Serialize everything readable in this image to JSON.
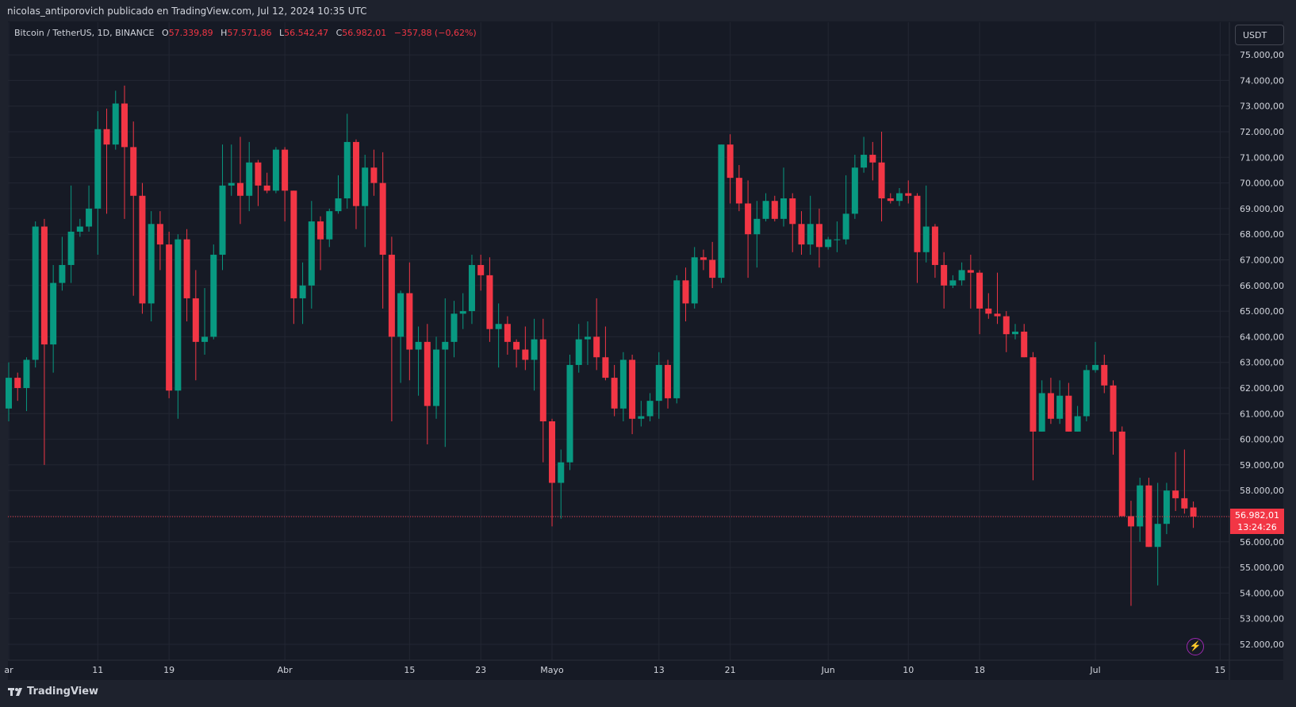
{
  "header": {
    "published_line": "nicolas_antiporovich publicado en TradingView.com, Jul 12, 2024 10:35 UTC"
  },
  "legend": {
    "symbol": "Bitcoin / TetherUS, 1D, BINANCE",
    "o_label": "O",
    "o_value": "57.339,89",
    "h_label": "H",
    "h_value": "57.571,86",
    "l_label": "L",
    "l_value": "56.542,47",
    "c_label": "C",
    "c_value": "56.982,01",
    "change": "−357,88 (−0,62%)"
  },
  "currency_button": "USDT",
  "last_price": {
    "price": "56.982,01",
    "countdown": "13:24:26",
    "value": 56982.01
  },
  "footer": {
    "brand": "TradingView"
  },
  "icons": {
    "brand_logo": "tradingview-logo-icon",
    "bolt": "lightning-bolt-icon"
  },
  "colors": {
    "up": "#089981",
    "down": "#f23645",
    "background": "#161a25",
    "grid": "#232733"
  },
  "chart_data": {
    "type": "candlestick",
    "ylim": [
      51500,
      75500
    ],
    "y_ticks": [
      52000,
      53000,
      54000,
      55000,
      56000,
      57000,
      58000,
      59000,
      60000,
      61000,
      62000,
      63000,
      64000,
      65000,
      66000,
      67000,
      68000,
      69000,
      70000,
      71000,
      72000,
      73000,
      74000,
      75000
    ],
    "y_tick_labels": [
      "52.000,00",
      "53.000,00",
      "54.000,00",
      "55.000,00",
      "56.000,00",
      "57.000,00",
      "58.000,00",
      "59.000,00",
      "60.000,00",
      "61.000,00",
      "62.000,00",
      "63.000,00",
      "64.000,00",
      "65.000,00",
      "66.000,00",
      "67.000,00",
      "68.000,00",
      "69.000,00",
      "70.000,00",
      "71.000,00",
      "72.000,00",
      "73.000,00",
      "74.000,00",
      "75.000,00"
    ],
    "x_ticks": [
      {
        "label": "ar",
        "date": "2024-03-01"
      },
      {
        "label": "11",
        "date": "2024-03-11"
      },
      {
        "label": "19",
        "date": "2024-03-19"
      },
      {
        "label": "Abr",
        "date": "2024-04-01"
      },
      {
        "label": "15",
        "date": "2024-04-15"
      },
      {
        "label": "23",
        "date": "2024-04-23"
      },
      {
        "label": "Mayo",
        "date": "2024-05-01"
      },
      {
        "label": "13",
        "date": "2024-05-13"
      },
      {
        "label": "21",
        "date": "2024-05-21"
      },
      {
        "label": "Jun",
        "date": "2024-06-01"
      },
      {
        "label": "10",
        "date": "2024-06-10"
      },
      {
        "label": "18",
        "date": "2024-06-18"
      },
      {
        "label": "Jul",
        "date": "2024-07-01"
      },
      {
        "label": "15",
        "date": "2024-07-15"
      }
    ],
    "candles": [
      {
        "date": "2024-03-01",
        "o": 61200,
        "h": 63000,
        "l": 60700,
        "c": 62400
      },
      {
        "date": "2024-03-02",
        "o": 62400,
        "h": 62600,
        "l": 61500,
        "c": 62000
      },
      {
        "date": "2024-03-03",
        "o": 62000,
        "h": 63200,
        "l": 61100,
        "c": 63100
      },
      {
        "date": "2024-03-04",
        "o": 63100,
        "h": 68500,
        "l": 62800,
        "c": 68300
      },
      {
        "date": "2024-03-05",
        "o": 68300,
        "h": 68600,
        "l": 59000,
        "c": 63700
      },
      {
        "date": "2024-03-06",
        "o": 63700,
        "h": 66800,
        "l": 62600,
        "c": 66100
      },
      {
        "date": "2024-03-07",
        "o": 66100,
        "h": 67900,
        "l": 65800,
        "c": 66800
      },
      {
        "date": "2024-03-08",
        "o": 66800,
        "h": 69900,
        "l": 66100,
        "c": 68100
      },
      {
        "date": "2024-03-09",
        "o": 68100,
        "h": 68600,
        "l": 67900,
        "c": 68300
      },
      {
        "date": "2024-03-10",
        "o": 68300,
        "h": 69900,
        "l": 68100,
        "c": 69000
      },
      {
        "date": "2024-03-11",
        "o": 69000,
        "h": 72800,
        "l": 67200,
        "c": 72100
      },
      {
        "date": "2024-03-12",
        "o": 72100,
        "h": 72900,
        "l": 68800,
        "c": 71500
      },
      {
        "date": "2024-03-13",
        "o": 71500,
        "h": 73600,
        "l": 71300,
        "c": 73100
      },
      {
        "date": "2024-03-14",
        "o": 73100,
        "h": 73800,
        "l": 68600,
        "c": 71400
      },
      {
        "date": "2024-03-15",
        "o": 71400,
        "h": 72400,
        "l": 65600,
        "c": 69500
      },
      {
        "date": "2024-03-16",
        "o": 69500,
        "h": 70000,
        "l": 64900,
        "c": 65300
      },
      {
        "date": "2024-03-17",
        "o": 65300,
        "h": 68900,
        "l": 64600,
        "c": 68400
      },
      {
        "date": "2024-03-18",
        "o": 68400,
        "h": 68900,
        "l": 66600,
        "c": 67600
      },
      {
        "date": "2024-03-19",
        "o": 67600,
        "h": 68100,
        "l": 61600,
        "c": 61900
      },
      {
        "date": "2024-03-20",
        "o": 61900,
        "h": 68000,
        "l": 60800,
        "c": 67800
      },
      {
        "date": "2024-03-21",
        "o": 67800,
        "h": 68200,
        "l": 64600,
        "c": 65500
      },
      {
        "date": "2024-03-22",
        "o": 65500,
        "h": 66600,
        "l": 62300,
        "c": 63800
      },
      {
        "date": "2024-03-23",
        "o": 63800,
        "h": 65900,
        "l": 63300,
        "c": 64000
      },
      {
        "date": "2024-03-24",
        "o": 64000,
        "h": 67600,
        "l": 63900,
        "c": 67200
      },
      {
        "date": "2024-03-25",
        "o": 67200,
        "h": 71500,
        "l": 66600,
        "c": 69900
      },
      {
        "date": "2024-03-26",
        "o": 69900,
        "h": 71500,
        "l": 69500,
        "c": 70000
      },
      {
        "date": "2024-03-27",
        "o": 70000,
        "h": 71800,
        "l": 68400,
        "c": 69500
      },
      {
        "date": "2024-03-28",
        "o": 69500,
        "h": 71600,
        "l": 68900,
        "c": 70800
      },
      {
        "date": "2024-03-29",
        "o": 70800,
        "h": 70900,
        "l": 69100,
        "c": 69900
      },
      {
        "date": "2024-03-30",
        "o": 69900,
        "h": 70400,
        "l": 69600,
        "c": 69700
      },
      {
        "date": "2024-03-31",
        "o": 69700,
        "h": 71400,
        "l": 69600,
        "c": 71300
      },
      {
        "date": "2024-04-01",
        "o": 71300,
        "h": 71400,
        "l": 68500,
        "c": 69700
      },
      {
        "date": "2024-04-02",
        "o": 69700,
        "h": 69700,
        "l": 64500,
        "c": 65500
      },
      {
        "date": "2024-04-03",
        "o": 65500,
        "h": 66900,
        "l": 64500,
        "c": 66000
      },
      {
        "date": "2024-04-04",
        "o": 66000,
        "h": 69300,
        "l": 65100,
        "c": 68500
      },
      {
        "date": "2024-04-05",
        "o": 68500,
        "h": 68700,
        "l": 66600,
        "c": 67800
      },
      {
        "date": "2024-04-06",
        "o": 67800,
        "h": 69000,
        "l": 67500,
        "c": 68900
      },
      {
        "date": "2024-04-07",
        "o": 68900,
        "h": 70300,
        "l": 68800,
        "c": 69400
      },
      {
        "date": "2024-04-08",
        "o": 69400,
        "h": 72700,
        "l": 69000,
        "c": 71600
      },
      {
        "date": "2024-04-09",
        "o": 71600,
        "h": 71700,
        "l": 68200,
        "c": 69100
      },
      {
        "date": "2024-04-10",
        "o": 69100,
        "h": 71100,
        "l": 67500,
        "c": 70600
      },
      {
        "date": "2024-04-11",
        "o": 70600,
        "h": 71300,
        "l": 69500,
        "c": 70000
      },
      {
        "date": "2024-04-12",
        "o": 70000,
        "h": 71200,
        "l": 65100,
        "c": 67200
      },
      {
        "date": "2024-04-13",
        "o": 67200,
        "h": 67900,
        "l": 60700,
        "c": 64000
      },
      {
        "date": "2024-04-14",
        "o": 64000,
        "h": 65800,
        "l": 62200,
        "c": 65700
      },
      {
        "date": "2024-04-15",
        "o": 65700,
        "h": 66900,
        "l": 62300,
        "c": 63500
      },
      {
        "date": "2024-04-16",
        "o": 63500,
        "h": 64400,
        "l": 61700,
        "c": 63800
      },
      {
        "date": "2024-04-17",
        "o": 63800,
        "h": 64500,
        "l": 59800,
        "c": 61300
      },
      {
        "date": "2024-04-18",
        "o": 61300,
        "h": 64000,
        "l": 60800,
        "c": 63500
      },
      {
        "date": "2024-04-19",
        "o": 63500,
        "h": 65500,
        "l": 59700,
        "c": 63800
      },
      {
        "date": "2024-04-20",
        "o": 63800,
        "h": 65400,
        "l": 63200,
        "c": 64900
      },
      {
        "date": "2024-04-21",
        "o": 64900,
        "h": 65700,
        "l": 64300,
        "c": 65000
      },
      {
        "date": "2024-04-22",
        "o": 65000,
        "h": 67200,
        "l": 64500,
        "c": 66800
      },
      {
        "date": "2024-04-23",
        "o": 66800,
        "h": 67200,
        "l": 65800,
        "c": 66400
      },
      {
        "date": "2024-04-24",
        "o": 66400,
        "h": 67100,
        "l": 63800,
        "c": 64300
      },
      {
        "date": "2024-04-25",
        "o": 64300,
        "h": 65300,
        "l": 62800,
        "c": 64500
      },
      {
        "date": "2024-04-26",
        "o": 64500,
        "h": 64800,
        "l": 63300,
        "c": 63800
      },
      {
        "date": "2024-04-27",
        "o": 63800,
        "h": 63900,
        "l": 62800,
        "c": 63500
      },
      {
        "date": "2024-04-28",
        "o": 63500,
        "h": 64400,
        "l": 62700,
        "c": 63100
      },
      {
        "date": "2024-04-29",
        "o": 63100,
        "h": 64700,
        "l": 61900,
        "c": 63900
      },
      {
        "date": "2024-04-30",
        "o": 63900,
        "h": 64700,
        "l": 59100,
        "c": 60700
      },
      {
        "date": "2024-05-01",
        "o": 60700,
        "h": 60800,
        "l": 56600,
        "c": 58300
      },
      {
        "date": "2024-05-02",
        "o": 58300,
        "h": 59600,
        "l": 56900,
        "c": 59100
      },
      {
        "date": "2024-05-03",
        "o": 59100,
        "h": 63300,
        "l": 58800,
        "c": 62900
      },
      {
        "date": "2024-05-04",
        "o": 62900,
        "h": 64500,
        "l": 62600,
        "c": 63900
      },
      {
        "date": "2024-05-05",
        "o": 63900,
        "h": 64600,
        "l": 62900,
        "c": 64000
      },
      {
        "date": "2024-05-06",
        "o": 64000,
        "h": 65500,
        "l": 62700,
        "c": 63200
      },
      {
        "date": "2024-05-07",
        "o": 63200,
        "h": 64400,
        "l": 62300,
        "c": 62400
      },
      {
        "date": "2024-05-08",
        "o": 62400,
        "h": 62900,
        "l": 60900,
        "c": 61200
      },
      {
        "date": "2024-05-09",
        "o": 61200,
        "h": 63400,
        "l": 60700,
        "c": 63100
      },
      {
        "date": "2024-05-10",
        "o": 63100,
        "h": 63300,
        "l": 60200,
        "c": 60800
      },
      {
        "date": "2024-05-11",
        "o": 60800,
        "h": 61500,
        "l": 60500,
        "c": 60900
      },
      {
        "date": "2024-05-12",
        "o": 60900,
        "h": 61800,
        "l": 60700,
        "c": 61500
      },
      {
        "date": "2024-05-13",
        "o": 61500,
        "h": 63400,
        "l": 60800,
        "c": 62900
      },
      {
        "date": "2024-05-14",
        "o": 62900,
        "h": 63100,
        "l": 61200,
        "c": 61600
      },
      {
        "date": "2024-05-15",
        "o": 61600,
        "h": 66400,
        "l": 61400,
        "c": 66200
      },
      {
        "date": "2024-05-16",
        "o": 66200,
        "h": 66700,
        "l": 64600,
        "c": 65300
      },
      {
        "date": "2024-05-17",
        "o": 65300,
        "h": 67500,
        "l": 65100,
        "c": 67100
      },
      {
        "date": "2024-05-18",
        "o": 67100,
        "h": 67400,
        "l": 66600,
        "c": 67000
      },
      {
        "date": "2024-05-19",
        "o": 67000,
        "h": 67700,
        "l": 65900,
        "c": 66300
      },
      {
        "date": "2024-05-20",
        "o": 66300,
        "h": 71500,
        "l": 66100,
        "c": 71500
      },
      {
        "date": "2024-05-21",
        "o": 71500,
        "h": 71900,
        "l": 69200,
        "c": 70200
      },
      {
        "date": "2024-05-22",
        "o": 70200,
        "h": 70700,
        "l": 68900,
        "c": 69200
      },
      {
        "date": "2024-05-23",
        "o": 69200,
        "h": 70100,
        "l": 66300,
        "c": 68000
      },
      {
        "date": "2024-05-24",
        "o": 68000,
        "h": 69300,
        "l": 66700,
        "c": 68600
      },
      {
        "date": "2024-05-25",
        "o": 68600,
        "h": 69600,
        "l": 68500,
        "c": 69300
      },
      {
        "date": "2024-05-26",
        "o": 69300,
        "h": 69500,
        "l": 68500,
        "c": 68600
      },
      {
        "date": "2024-05-27",
        "o": 68600,
        "h": 70600,
        "l": 68300,
        "c": 69400
      },
      {
        "date": "2024-05-28",
        "o": 69400,
        "h": 69600,
        "l": 67300,
        "c": 68400
      },
      {
        "date": "2024-05-29",
        "o": 68400,
        "h": 68900,
        "l": 67200,
        "c": 67600
      },
      {
        "date": "2024-05-30",
        "o": 67600,
        "h": 69500,
        "l": 67200,
        "c": 68400
      },
      {
        "date": "2024-05-31",
        "o": 68400,
        "h": 69000,
        "l": 66700,
        "c": 67500
      },
      {
        "date": "2024-06-01",
        "o": 67500,
        "h": 67900,
        "l": 67400,
        "c": 67800
      },
      {
        "date": "2024-06-02",
        "o": 67800,
        "h": 68500,
        "l": 67300,
        "c": 67800
      },
      {
        "date": "2024-06-03",
        "o": 67800,
        "h": 70300,
        "l": 67600,
        "c": 68800
      },
      {
        "date": "2024-06-04",
        "o": 68800,
        "h": 71100,
        "l": 68600,
        "c": 70600
      },
      {
        "date": "2024-06-05",
        "o": 70600,
        "h": 71800,
        "l": 70400,
        "c": 71100
      },
      {
        "date": "2024-06-06",
        "o": 71100,
        "h": 71600,
        "l": 70100,
        "c": 70800
      },
      {
        "date": "2024-06-07",
        "o": 70800,
        "h": 72000,
        "l": 68500,
        "c": 69400
      },
      {
        "date": "2024-06-08",
        "o": 69400,
        "h": 69600,
        "l": 69200,
        "c": 69300
      },
      {
        "date": "2024-06-09",
        "o": 69300,
        "h": 69800,
        "l": 69100,
        "c": 69600
      },
      {
        "date": "2024-06-10",
        "o": 69600,
        "h": 70100,
        "l": 69200,
        "c": 69500
      },
      {
        "date": "2024-06-11",
        "o": 69500,
        "h": 69600,
        "l": 66100,
        "c": 67300
      },
      {
        "date": "2024-06-12",
        "o": 67300,
        "h": 69900,
        "l": 66900,
        "c": 68300
      },
      {
        "date": "2024-06-13",
        "o": 68300,
        "h": 68400,
        "l": 66300,
        "c": 66800
      },
      {
        "date": "2024-06-14",
        "o": 66800,
        "h": 67300,
        "l": 65100,
        "c": 66000
      },
      {
        "date": "2024-06-15",
        "o": 66000,
        "h": 66400,
        "l": 65900,
        "c": 66200
      },
      {
        "date": "2024-06-16",
        "o": 66200,
        "h": 66900,
        "l": 66000,
        "c": 66600
      },
      {
        "date": "2024-06-17",
        "o": 66600,
        "h": 67200,
        "l": 65100,
        "c": 66500
      },
      {
        "date": "2024-06-18",
        "o": 66500,
        "h": 66600,
        "l": 64100,
        "c": 65100
      },
      {
        "date": "2024-06-19",
        "o": 65100,
        "h": 65700,
        "l": 64700,
        "c": 64900
      },
      {
        "date": "2024-06-20",
        "o": 64900,
        "h": 66500,
        "l": 64500,
        "c": 64800
      },
      {
        "date": "2024-06-21",
        "o": 64800,
        "h": 65000,
        "l": 63400,
        "c": 64100
      },
      {
        "date": "2024-06-22",
        "o": 64100,
        "h": 64500,
        "l": 63900,
        "c": 64200
      },
      {
        "date": "2024-06-23",
        "o": 64200,
        "h": 64500,
        "l": 63200,
        "c": 63200
      },
      {
        "date": "2024-06-24",
        "o": 63200,
        "h": 63400,
        "l": 58400,
        "c": 60300
      },
      {
        "date": "2024-06-25",
        "o": 60300,
        "h": 62300,
        "l": 60300,
        "c": 61800
      },
      {
        "date": "2024-06-26",
        "o": 61800,
        "h": 62400,
        "l": 60600,
        "c": 60800
      },
      {
        "date": "2024-06-27",
        "o": 60800,
        "h": 62300,
        "l": 60600,
        "c": 61700
      },
      {
        "date": "2024-06-28",
        "o": 61700,
        "h": 62200,
        "l": 60300,
        "c": 60300
      },
      {
        "date": "2024-06-29",
        "o": 60300,
        "h": 61300,
        "l": 60300,
        "c": 60900
      },
      {
        "date": "2024-06-30",
        "o": 60900,
        "h": 62900,
        "l": 60700,
        "c": 62700
      },
      {
        "date": "2024-07-01",
        "o": 62700,
        "h": 63800,
        "l": 62600,
        "c": 62900
      },
      {
        "date": "2024-07-02",
        "o": 62900,
        "h": 63300,
        "l": 61800,
        "c": 62100
      },
      {
        "date": "2024-07-03",
        "o": 62100,
        "h": 62300,
        "l": 59400,
        "c": 60300
      },
      {
        "date": "2024-07-04",
        "o": 60300,
        "h": 60500,
        "l": 57000,
        "c": 57000
      },
      {
        "date": "2024-07-05",
        "o": 57000,
        "h": 57600,
        "l": 53500,
        "c": 56600
      },
      {
        "date": "2024-07-06",
        "o": 56600,
        "h": 58500,
        "l": 56000,
        "c": 58200
      },
      {
        "date": "2024-07-07",
        "o": 58200,
        "h": 58500,
        "l": 55800,
        "c": 55800
      },
      {
        "date": "2024-07-08",
        "o": 55800,
        "h": 58300,
        "l": 54300,
        "c": 56700
      },
      {
        "date": "2024-07-09",
        "o": 56700,
        "h": 58300,
        "l": 56300,
        "c": 58000
      },
      {
        "date": "2024-07-10",
        "o": 58000,
        "h": 59500,
        "l": 57200,
        "c": 57700
      },
      {
        "date": "2024-07-11",
        "o": 57700,
        "h": 59600,
        "l": 57100,
        "c": 57300
      },
      {
        "date": "2024-07-12",
        "o": 57339.89,
        "h": 57571.86,
        "l": 56542.47,
        "c": 56982.01
      }
    ]
  }
}
